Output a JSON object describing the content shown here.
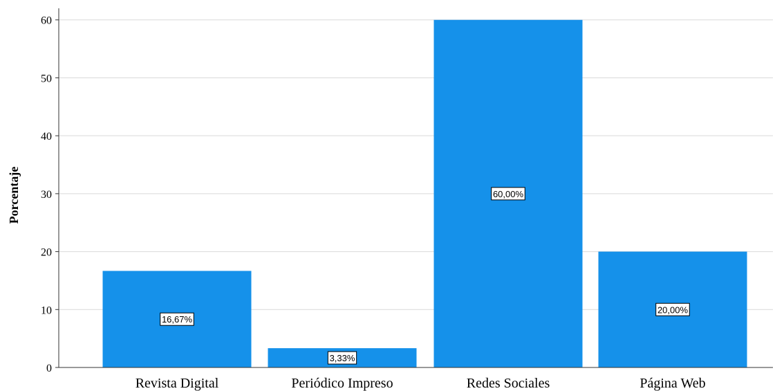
{
  "chart_data": {
    "type": "bar",
    "categories": [
      "Revista Digital",
      "Periódico Impreso",
      "Redes Sociales",
      "Página Web"
    ],
    "values": [
      16.67,
      3.33,
      60.0,
      20.0
    ],
    "data_labels": [
      "16,67%",
      "3,33%",
      "60,00%",
      "20,00%"
    ],
    "title": "",
    "xlabel": "",
    "ylabel": "Porcentaje",
    "ylim": [
      0,
      62
    ],
    "yticks": [
      0,
      10,
      20,
      30,
      40,
      50,
      60
    ],
    "grid": true,
    "bar_color": "#1591ea",
    "grid_color": "#d9d9d9"
  }
}
